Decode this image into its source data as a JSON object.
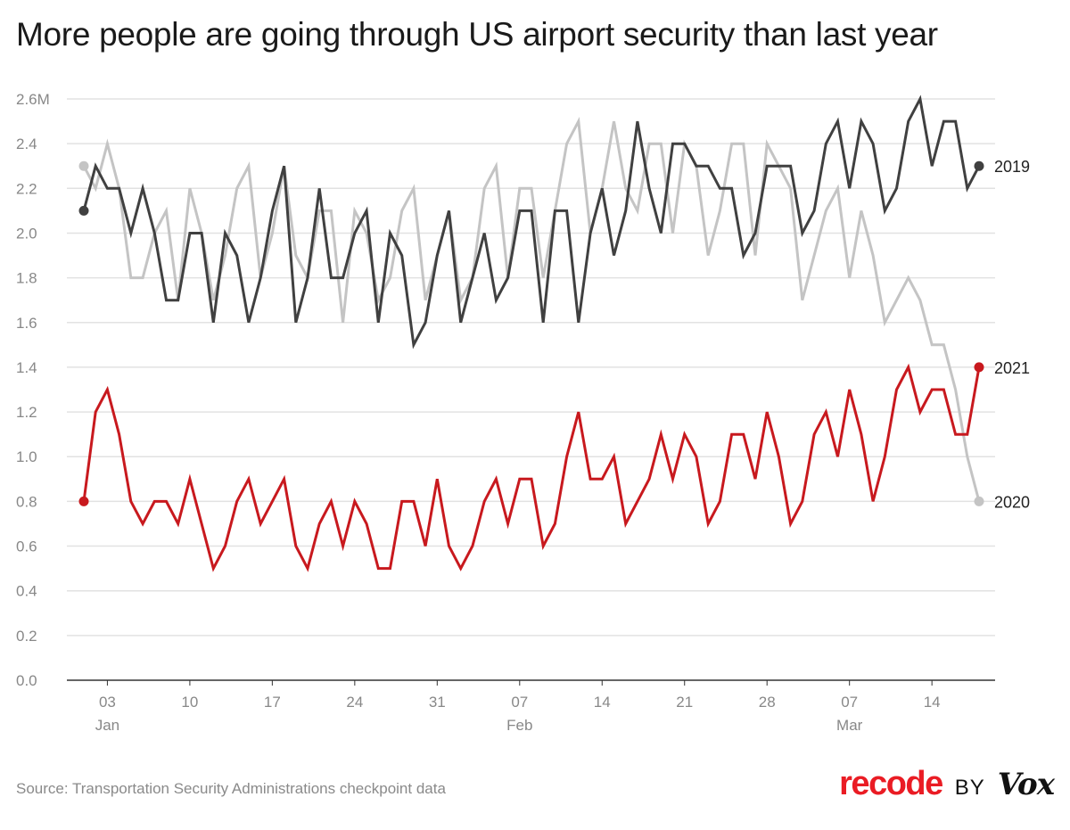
{
  "chart_data": {
    "type": "line",
    "title": "More people are going through US airport security than last year",
    "source": "Source: Transportation Security Administrations checkpoint data",
    "x": [
      "Jan 01",
      "Jan 02",
      "Jan 03",
      "Jan 04",
      "Jan 05",
      "Jan 06",
      "Jan 07",
      "Jan 08",
      "Jan 09",
      "Jan 10",
      "Jan 11",
      "Jan 12",
      "Jan 13",
      "Jan 14",
      "Jan 15",
      "Jan 16",
      "Jan 17",
      "Jan 18",
      "Jan 19",
      "Jan 20",
      "Jan 21",
      "Jan 22",
      "Jan 23",
      "Jan 24",
      "Jan 25",
      "Jan 26",
      "Jan 27",
      "Jan 28",
      "Jan 29",
      "Jan 30",
      "Jan 31",
      "Feb 01",
      "Feb 02",
      "Feb 03",
      "Feb 04",
      "Feb 05",
      "Feb 06",
      "Feb 07",
      "Feb 08",
      "Feb 09",
      "Feb 10",
      "Feb 11",
      "Feb 12",
      "Feb 13",
      "Feb 14",
      "Feb 15",
      "Feb 16",
      "Feb 17",
      "Feb 18",
      "Feb 19",
      "Feb 20",
      "Feb 21",
      "Feb 22",
      "Feb 23",
      "Feb 24",
      "Feb 25",
      "Feb 26",
      "Feb 27",
      "Feb 28",
      "Mar 01",
      "Mar 02",
      "Mar 03",
      "Mar 04",
      "Mar 05",
      "Mar 06",
      "Mar 07",
      "Mar 08",
      "Mar 09",
      "Mar 10",
      "Mar 11",
      "Mar 12",
      "Mar 13",
      "Mar 14",
      "Mar 15",
      "Mar 16",
      "Mar 17",
      "Mar 18"
    ],
    "x_ticks": [
      {
        "at": "Jan 03",
        "label": "03",
        "month": "Jan"
      },
      {
        "at": "Jan 10",
        "label": "10"
      },
      {
        "at": "Jan 17",
        "label": "17"
      },
      {
        "at": "Jan 24",
        "label": "24"
      },
      {
        "at": "Jan 31",
        "label": "31"
      },
      {
        "at": "Feb 07",
        "label": "07",
        "month": "Feb"
      },
      {
        "at": "Feb 14",
        "label": "14"
      },
      {
        "at": "Feb 21",
        "label": "21"
      },
      {
        "at": "Feb 28",
        "label": "28"
      },
      {
        "at": "Mar 07",
        "label": "07",
        "month": "Mar"
      },
      {
        "at": "Mar 14",
        "label": "14"
      }
    ],
    "y_ticks": [
      "0.0",
      "0.2",
      "0.4",
      "0.6",
      "0.8",
      "1.0",
      "1.2",
      "1.4",
      "1.6",
      "1.8",
      "2.0",
      "2.2",
      "2.4",
      "2.6M"
    ],
    "ylim": [
      0,
      2.6
    ],
    "yunit": "millions",
    "grid": true,
    "legend": "end-of-line labels",
    "series": [
      {
        "name": "2020",
        "color": "#c4c4c4",
        "values": [
          2.3,
          2.2,
          2.4,
          2.2,
          1.8,
          1.8,
          2.0,
          2.1,
          1.7,
          2.2,
          2.0,
          1.7,
          1.9,
          2.2,
          2.3,
          1.8,
          2.0,
          2.3,
          1.9,
          1.8,
          2.1,
          2.1,
          1.6,
          2.1,
          2.0,
          1.7,
          1.8,
          2.1,
          2.2,
          1.7,
          1.9,
          2.1,
          1.7,
          1.8,
          2.2,
          2.3,
          1.8,
          2.2,
          2.2,
          1.8,
          2.1,
          2.4,
          2.5,
          2.0,
          2.2,
          2.5,
          2.2,
          2.1,
          2.4,
          2.4,
          2.0,
          2.4,
          2.3,
          1.9,
          2.1,
          2.4,
          2.4,
          1.9,
          2.4,
          2.3,
          2.2,
          1.7,
          1.9,
          2.1,
          2.2,
          1.8,
          2.1,
          1.9,
          1.6,
          1.7,
          1.8,
          1.7,
          1.5,
          1.5,
          1.3,
          1.0,
          0.8
        ]
      },
      {
        "name": "2019",
        "color": "#404040",
        "values": [
          2.1,
          2.3,
          2.2,
          2.2,
          2.0,
          2.2,
          2.0,
          1.7,
          1.7,
          2.0,
          2.0,
          1.6,
          2.0,
          1.9,
          1.6,
          1.8,
          2.1,
          2.3,
          1.6,
          1.8,
          2.2,
          1.8,
          1.8,
          2.0,
          2.1,
          1.6,
          2.0,
          1.9,
          1.5,
          1.6,
          1.9,
          2.1,
          1.6,
          1.8,
          2.0,
          1.7,
          1.8,
          2.1,
          2.1,
          1.6,
          2.1,
          2.1,
          1.6,
          2.0,
          2.2,
          1.9,
          2.1,
          2.5,
          2.2,
          2.0,
          2.4,
          2.4,
          2.3,
          2.3,
          2.2,
          2.2,
          1.9,
          2.0,
          2.3,
          2.3,
          2.3,
          2.0,
          2.1,
          2.4,
          2.5,
          2.2,
          2.5,
          2.4,
          2.1,
          2.2,
          2.5,
          2.6,
          2.3,
          2.5,
          2.5,
          2.2,
          2.3
        ]
      },
      {
        "name": "2021",
        "color": "#c8191e",
        "values": [
          0.8,
          1.2,
          1.3,
          1.1,
          0.8,
          0.7,
          0.8,
          0.8,
          0.7,
          0.9,
          0.7,
          0.5,
          0.6,
          0.8,
          0.9,
          0.7,
          0.8,
          0.9,
          0.6,
          0.5,
          0.7,
          0.8,
          0.6,
          0.8,
          0.7,
          0.5,
          0.5,
          0.8,
          0.8,
          0.6,
          0.9,
          0.6,
          0.5,
          0.6,
          0.8,
          0.9,
          0.7,
          0.9,
          0.9,
          0.6,
          0.7,
          1.0,
          1.2,
          0.9,
          0.9,
          1.0,
          0.7,
          0.8,
          0.9,
          1.1,
          0.9,
          1.1,
          1.0,
          0.7,
          0.8,
          1.1,
          1.1,
          0.9,
          1.2,
          1.0,
          0.7,
          0.8,
          1.1,
          1.2,
          1.0,
          1.3,
          1.1,
          0.8,
          1.0,
          1.3,
          1.4,
          1.2,
          1.3,
          1.3,
          1.1,
          1.1,
          1.4
        ]
      }
    ]
  },
  "branding": {
    "logo_text": "recode",
    "by": "BY",
    "vox": "Vox",
    "brand_color": "#ea1c24"
  }
}
